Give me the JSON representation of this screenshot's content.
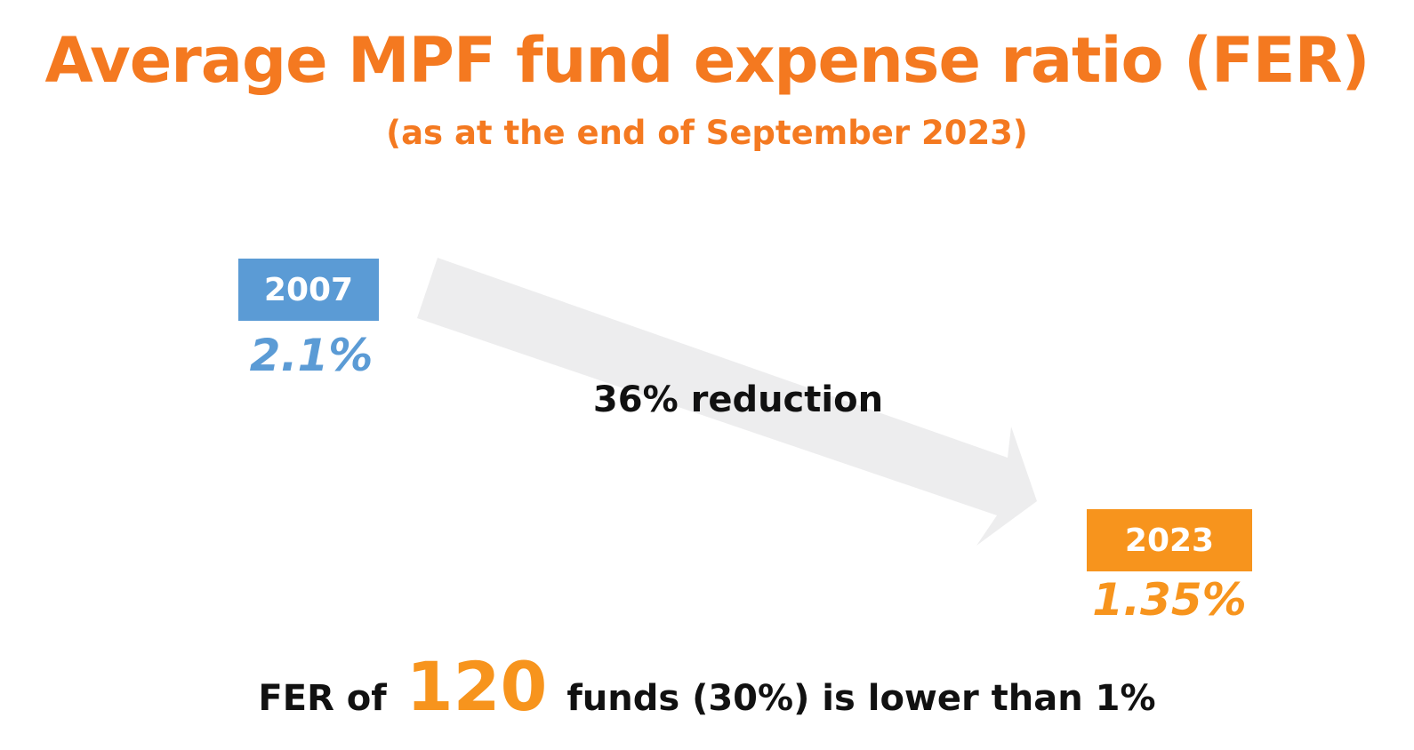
{
  "title": "Average MPF fund expense ratio (FER)",
  "subtitle": "(as at the end of September 2023)",
  "start": {
    "year": "2007",
    "value": "2.1%"
  },
  "end": {
    "year": "2023",
    "value": "1.35%"
  },
  "reduction_label": "36% reduction",
  "summary": {
    "prefix": "FER of",
    "count": "120",
    "suffix": "funds (30%) is lower than 1%"
  },
  "colors": {
    "title": "#F47920",
    "start_accent": "#5B9BD5",
    "end_accent": "#F7941D",
    "arrow": "#EDEDEE",
    "text": "#111111"
  },
  "icons": {
    "trend_arrow": "down-right-arrow-icon"
  }
}
